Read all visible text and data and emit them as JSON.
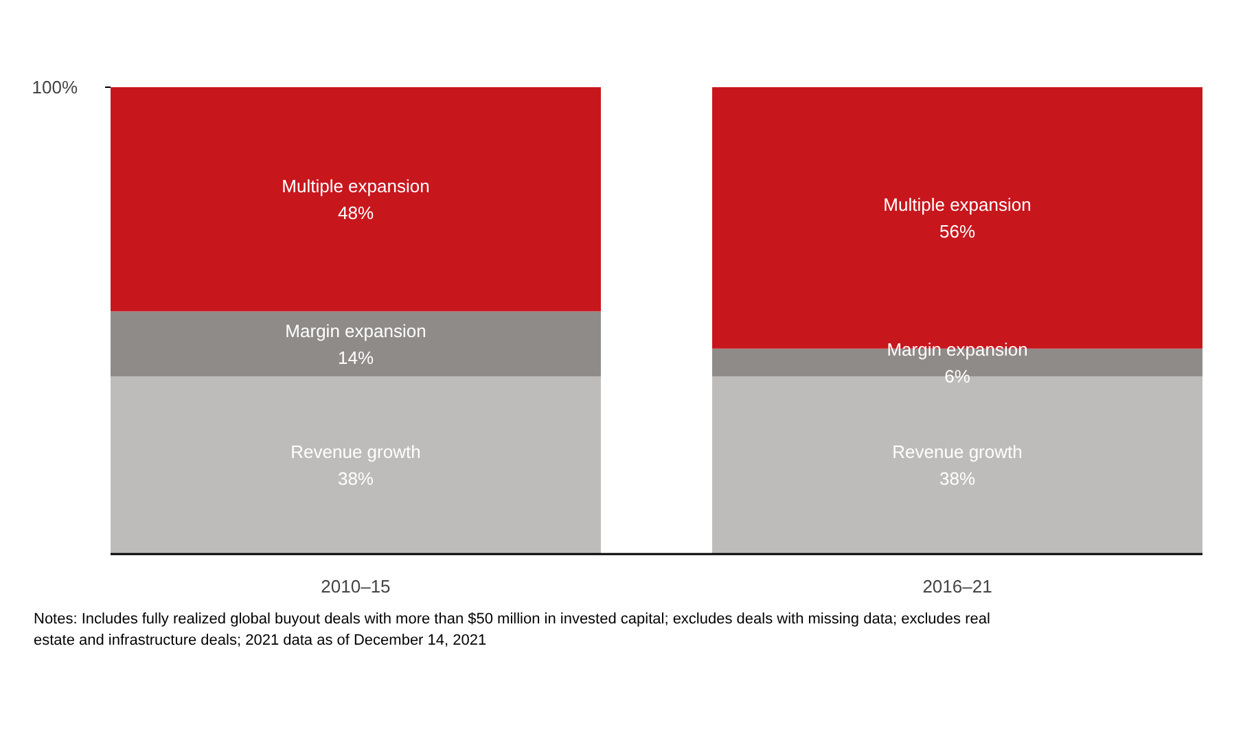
{
  "chart_data": {
    "type": "bar",
    "stacked": true,
    "categories": [
      "2010–15",
      "2016–21"
    ],
    "ylim": [
      0,
      100
    ],
    "yticks": [
      {
        "value": 100,
        "label": "100%"
      }
    ],
    "grid": false,
    "series": [
      {
        "name": "Revenue growth",
        "color": "#bdbcba",
        "values": [
          38,
          38
        ],
        "value_labels": [
          "38%",
          "38%"
        ]
      },
      {
        "name": "Margin expansion",
        "color": "#8f8b89",
        "values": [
          14,
          6
        ],
        "value_labels": [
          "14%",
          "6%"
        ]
      },
      {
        "name": "Multiple expansion",
        "color": "#c8161d",
        "values": [
          48,
          56
        ],
        "value_labels": [
          "48%",
          "56%"
        ]
      }
    ],
    "annotations": [
      "Notes: Includes fully realized global buyout deals with more than $50 million in invested capital; excludes deals with missing data; excludes real estate and infrastructure deals; 2021 data as of December 14, 2021"
    ]
  }
}
